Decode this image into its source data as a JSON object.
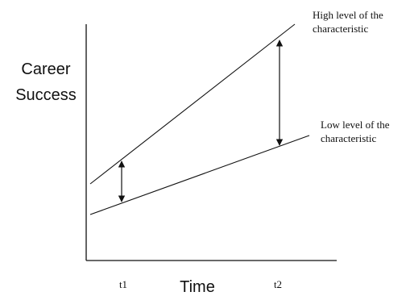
{
  "y_axis_label_line1": "Career",
  "y_axis_label_line2": "Success",
  "x_axis_label": "Time",
  "time_points": [
    "t1",
    "t2"
  ],
  "lines": [
    {
      "label_line1": "High level of the",
      "label_line2": "characteristic"
    },
    {
      "label_line1": "Low level of the",
      "label_line2": "characteristic"
    }
  ],
  "colors": {
    "ink": "#111111",
    "background": "#ffffff"
  }
}
